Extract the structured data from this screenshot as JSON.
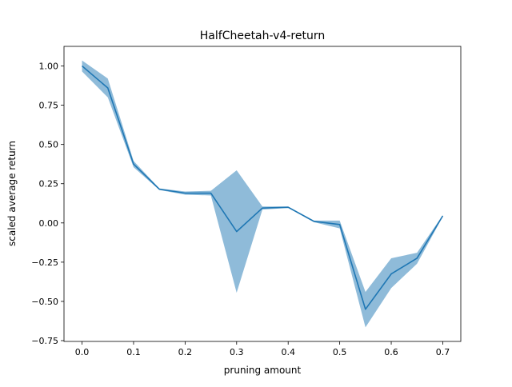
{
  "chart_data": {
    "type": "line",
    "title": "HalfCheetah-v4-return",
    "xlabel": "pruning amount",
    "ylabel": "scaled average return",
    "xlim": [
      -0.035,
      0.735
    ],
    "ylim": [
      -0.755,
      1.125
    ],
    "xticks": [
      0.0,
      0.1,
      0.2,
      0.3,
      0.4,
      0.5,
      0.6,
      0.7
    ],
    "xtick_labels": [
      "0.0",
      "0.1",
      "0.2",
      "0.3",
      "0.4",
      "0.5",
      "0.6",
      "0.7"
    ],
    "yticks": [
      -0.75,
      -0.5,
      -0.25,
      0.0,
      0.25,
      0.5,
      0.75,
      1.0
    ],
    "ytick_labels": [
      "−0.75",
      "−0.50",
      "−0.25",
      "0.00",
      "0.25",
      "0.50",
      "0.75",
      "1.00"
    ],
    "grid": false,
    "legend": null,
    "x": [
      0.0,
      0.05,
      0.1,
      0.15,
      0.2,
      0.25,
      0.3,
      0.35,
      0.4,
      0.45,
      0.5,
      0.55,
      0.6,
      0.65,
      0.7
    ],
    "series": [
      {
        "color": "#1f77b4",
        "band_color": "#1f77b4",
        "band_opacity": 0.5,
        "values": [
          1.0,
          0.86,
          0.375,
          0.215,
          0.19,
          0.19,
          -0.055,
          0.095,
          0.1,
          0.01,
          -0.01,
          -0.55,
          -0.325,
          -0.225,
          0.045
        ],
        "upper": [
          1.035,
          0.92,
          0.395,
          0.22,
          0.2,
          0.205,
          0.335,
          0.105,
          0.105,
          0.015,
          0.015,
          -0.44,
          -0.225,
          -0.19,
          0.05
        ],
        "lower": [
          0.965,
          0.8,
          0.355,
          0.21,
          0.18,
          0.175,
          -0.445,
          0.085,
          0.095,
          0.005,
          -0.035,
          -0.665,
          -0.415,
          -0.26,
          0.04
        ]
      }
    ]
  }
}
